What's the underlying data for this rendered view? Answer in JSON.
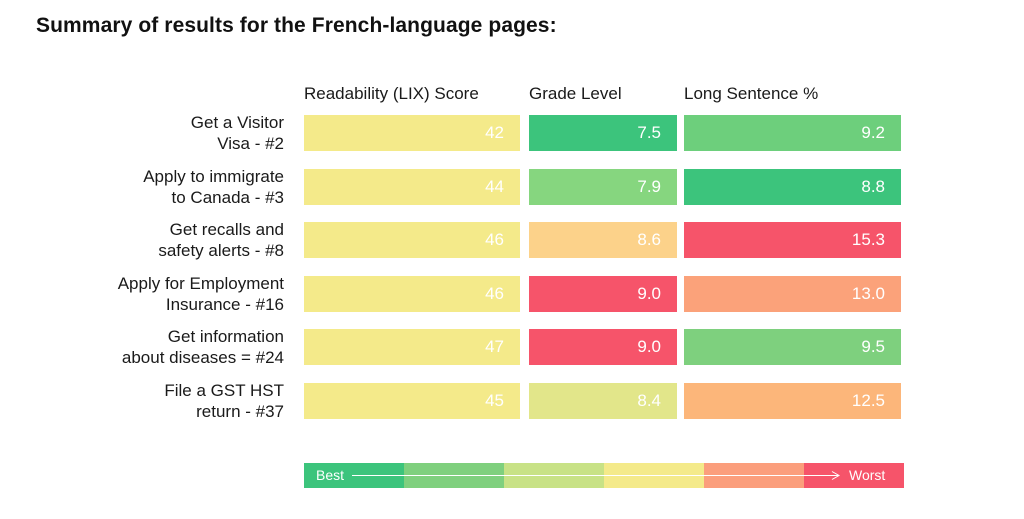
{
  "title": "Summary of results for the French-language pages:",
  "columns": [
    "Readability (LIX) Score",
    "Grade Level",
    "Long Sentence %"
  ],
  "rows": [
    {
      "label_line1": "Get a Visitor",
      "label_line2": "Visa - #2",
      "values": [
        "42",
        "7.5",
        "9.2"
      ],
      "colors": [
        "#f4ea8a",
        "#3cc47c",
        "#6dcf7c"
      ]
    },
    {
      "label_line1": "Apply to immigrate",
      "label_line2": "to Canada - #3",
      "values": [
        "44",
        "7.9",
        "8.8"
      ],
      "colors": [
        "#f4ea8a",
        "#86d67f",
        "#3cc47c"
      ]
    },
    {
      "label_line1": "Get recalls and",
      "label_line2": "safety alerts - #8",
      "values": [
        "46",
        "8.6",
        "15.3"
      ],
      "colors": [
        "#f4ea8a",
        "#fcd28a",
        "#f6546a"
      ]
    },
    {
      "label_line1": "Apply for Employment",
      "label_line2": "Insurance - #16",
      "values": [
        "46",
        "9.0",
        "13.0"
      ],
      "colors": [
        "#f4ea8a",
        "#f6546a",
        "#fba27a"
      ]
    },
    {
      "label_line1": "Get information",
      "label_line2": "about diseases = #24",
      "values": [
        "47",
        "9.0",
        "9.5"
      ],
      "colors": [
        "#f4ea8a",
        "#f6546a",
        "#7ed07e"
      ]
    },
    {
      "label_line1": "File a GST HST",
      "label_line2": "return - #37",
      "values": [
        "45",
        "8.4",
        "12.5"
      ],
      "colors": [
        "#f4ea8a",
        "#e2e68a",
        "#fcb67a"
      ]
    }
  ],
  "legend": {
    "best_label": "Best",
    "worst_label": "Worst",
    "colors": [
      "#3cc47c",
      "#7fd07e",
      "#c8e286",
      "#f4ea8a",
      "#fb9e7c",
      "#f6546a"
    ]
  },
  "chart_data": {
    "type": "table",
    "title": "Summary of results for the French-language pages:",
    "columns": [
      "Readability (LIX) Score",
      "Grade Level",
      "Long Sentence %"
    ],
    "rows": [
      {
        "page": "Get a Visitor Visa - #2",
        "values": [
          42,
          7.5,
          9.2
        ]
      },
      {
        "page": "Apply to immigrate to Canada - #3",
        "values": [
          44,
          7.9,
          8.8
        ]
      },
      {
        "page": "Get recalls and safety alerts - #8",
        "values": [
          46,
          8.6,
          15.3
        ]
      },
      {
        "page": "Apply for Employment Insurance - #16",
        "values": [
          46,
          9.0,
          13.0
        ]
      },
      {
        "page": "Get information about diseases = #24",
        "values": [
          47,
          9.0,
          9.5
        ]
      },
      {
        "page": "File a GST HST return - #37",
        "values": [
          45,
          8.4,
          12.5
        ]
      }
    ],
    "legend": [
      "Best",
      "Worst"
    ]
  }
}
